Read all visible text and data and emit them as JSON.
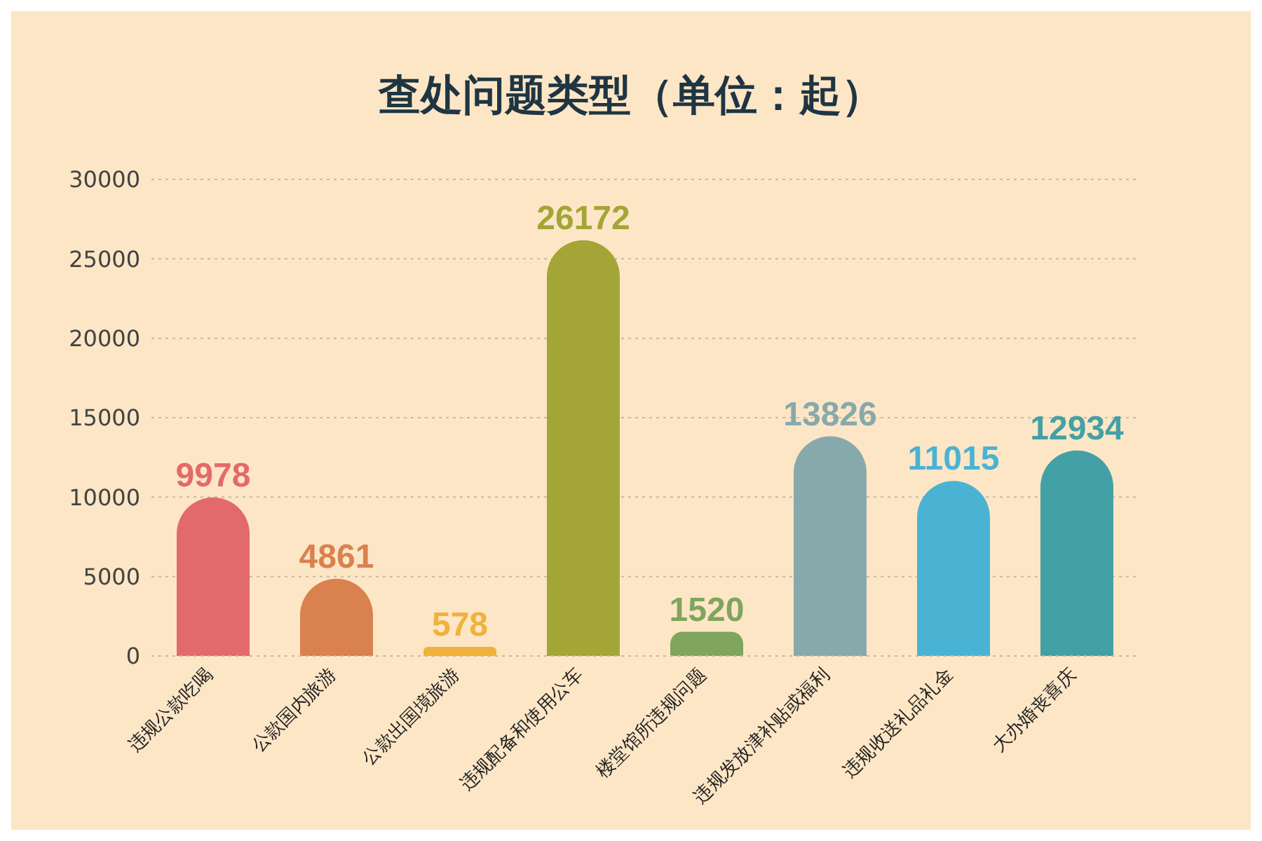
{
  "chart_data": {
    "type": "bar",
    "title": "查处问题类型（单位：起）",
    "categories": [
      "违规公款吃喝",
      "公款国内旅游",
      "公款出国境旅游",
      "违规配备和使用公车",
      "楼堂馆所违规问题",
      "违规发放津补贴或福利",
      "违规收送礼品礼金",
      "大办婚丧喜庆"
    ],
    "values": [
      9978,
      4861,
      578,
      26172,
      1520,
      13826,
      11015,
      12934
    ],
    "colors": [
      "#e36a6a",
      "#d9824f",
      "#f0b23a",
      "#a3a637",
      "#7fa55e",
      "#87a9ac",
      "#4ab3d3",
      "#43a1a5"
    ],
    "ylim": [
      0,
      30000
    ],
    "yticks": [
      0,
      5000,
      10000,
      15000,
      20000,
      25000,
      30000
    ],
    "grid": "y",
    "data_labels": true
  }
}
